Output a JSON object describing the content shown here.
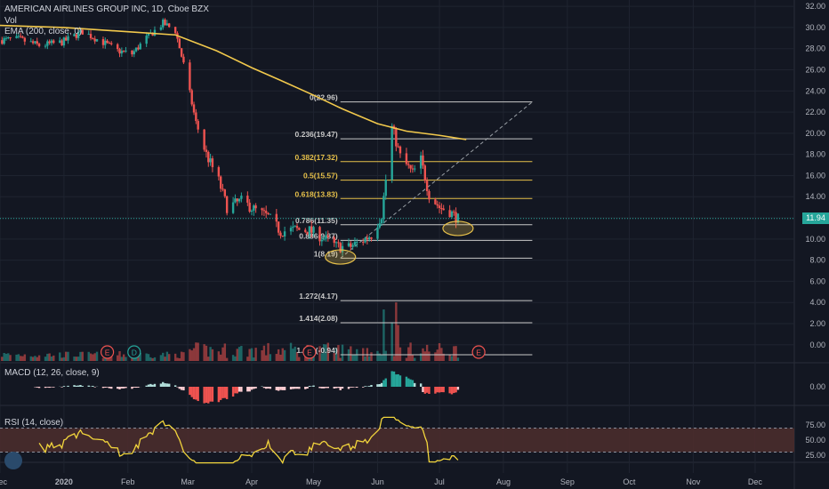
{
  "header": {
    "symbol_title": "AMERICAN AIRLINES GROUP INC, 1D, Cboe BZX",
    "vol_label": "Vol",
    "ema_label": "EMA (200, close, 0)"
  },
  "macd_panel": {
    "label": "MACD (12, 26, close, 9)",
    "zero_tick": "0.00"
  },
  "rsi_panel": {
    "label": "RSI (14, close)",
    "ticks": [
      "75.00",
      "50.00",
      "25.00"
    ],
    "band": [
      30,
      70
    ]
  },
  "last_price": "11.94",
  "colors": {
    "background": "#131722",
    "grid": "#1f2430",
    "up": "#26a69a",
    "down": "#ef5350",
    "ema": "#f2c94c",
    "rsi_band": "#4a2c2c",
    "rsi_line": "#f2d53c",
    "fib_yellow": "#e6c04a",
    "fib_white": "#c8c8c8"
  },
  "chart_data": {
    "type": "candlestick",
    "title": "AMERICAN AIRLINES GROUP INC, 1D, Cboe BZX",
    "x_tick_labels": [
      "Dec",
      "2020",
      "Feb",
      "Mar",
      "Apr",
      "May",
      "Jun",
      "Jul",
      "Aug",
      "Sep",
      "Oct",
      "Nov",
      "Dec"
    ],
    "y_tick_labels": [
      "32.00",
      "30.00",
      "28.00",
      "26.00",
      "24.00",
      "22.00",
      "20.00",
      "18.00",
      "16.00",
      "14.00",
      "12.00",
      "10.00",
      "8.00",
      "6.00",
      "4.00",
      "2.00",
      "0.00"
    ],
    "ylim": [
      -1.7,
      32.6
    ],
    "price_path": [
      [
        "2019-12-01",
        28.8
      ],
      [
        "2019-12-10",
        28.9
      ],
      [
        "2019-12-20",
        28.3
      ],
      [
        "2019-12-31",
        28.6
      ],
      [
        "2020-01-10",
        29.6
      ],
      [
        "2020-01-20",
        28.6
      ],
      [
        "2020-01-27",
        27.8
      ],
      [
        "2020-02-03",
        27.5
      ],
      [
        "2020-02-10",
        29.0
      ],
      [
        "2020-02-18",
        30.4
      ],
      [
        "2020-02-24",
        29.7
      ],
      [
        "2020-02-28",
        26.5
      ],
      [
        "2020-03-05",
        21.0
      ],
      [
        "2020-03-10",
        18.0
      ],
      [
        "2020-03-16",
        15.5
      ],
      [
        "2020-03-20",
        13.0
      ],
      [
        "2020-03-27",
        13.6
      ],
      [
        "2020-04-03",
        12.7
      ],
      [
        "2020-04-09",
        12.1
      ],
      [
        "2020-04-15",
        10.7
      ],
      [
        "2020-04-22",
        10.9
      ],
      [
        "2020-04-29",
        10.8
      ],
      [
        "2020-05-05",
        10.2
      ],
      [
        "2020-05-12",
        9.3
      ],
      [
        "2020-05-18",
        9.2
      ],
      [
        "2020-05-25",
        9.9
      ],
      [
        "2020-05-29",
        10.4
      ],
      [
        "2020-06-03",
        12.3
      ],
      [
        "2020-06-08",
        20.6
      ],
      [
        "2020-06-12",
        17.8
      ],
      [
        "2020-06-18",
        16.2
      ],
      [
        "2020-06-22",
        17.5
      ],
      [
        "2020-06-26",
        14.2
      ],
      [
        "2020-07-01",
        13.0
      ],
      [
        "2020-07-06",
        12.6
      ],
      [
        "2020-07-10",
        11.9
      ]
    ],
    "ema_200": [
      [
        "2019-12-01",
        30.2
      ],
      [
        "2020-01-01",
        30.0
      ],
      [
        "2020-02-01",
        29.6
      ],
      [
        "2020-02-24",
        29.3
      ],
      [
        "2020-03-15",
        27.8
      ],
      [
        "2020-04-01",
        26.2
      ],
      [
        "2020-04-15",
        25.0
      ],
      [
        "2020-05-01",
        23.6
      ],
      [
        "2020-05-15",
        22.3
      ],
      [
        "2020-06-01",
        20.9
      ],
      [
        "2020-06-15",
        20.2
      ],
      [
        "2020-07-01",
        19.8
      ],
      [
        "2020-07-14",
        19.4
      ]
    ],
    "fibonacci": {
      "levels": [
        {
          "label": "0(22.96)",
          "value": 22.96
        },
        {
          "label": "0.236(19.47)",
          "value": 19.47
        },
        {
          "label": "0.382(17.32)",
          "value": 17.32
        },
        {
          "label": "0.5(15.57)",
          "value": 15.57
        },
        {
          "label": "0.618(13.83)",
          "value": 13.83
        },
        {
          "label": "0.786(11.35)",
          "value": 11.35
        },
        {
          "label": "0.886(9.87)",
          "value": 9.87
        },
        {
          "label": "1(8.19)",
          "value": 8.19
        },
        {
          "label": "1.272(4.17)",
          "value": 4.17
        },
        {
          "label": "1.414(2.08)",
          "value": 2.08
        },
        {
          "label": "1.618(-0.94)",
          "value": -0.94
        }
      ],
      "start_date": "2020-05-14",
      "end_date": "2020-08-15",
      "trend_from": [
        "2020-05-14",
        8.19
      ],
      "trend_to": [
        "2020-08-15",
        22.96
      ]
    },
    "highlights": [
      [
        "2020-05-14",
        8.3
      ],
      [
        "2020-07-10",
        11.0
      ]
    ],
    "event_markers": [
      {
        "date": "2020-01-22",
        "label": "E"
      },
      {
        "date": "2020-02-04",
        "label": "D"
      },
      {
        "date": "2020-04-29",
        "label": "E"
      },
      {
        "date": "2020-07-20",
        "label": "E"
      }
    ]
  }
}
